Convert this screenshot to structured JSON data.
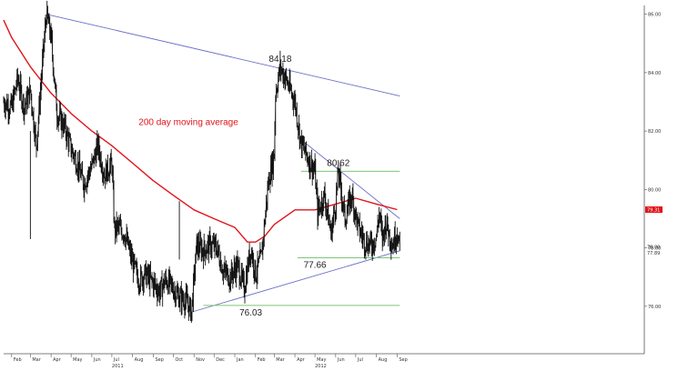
{
  "colors": {
    "price": "#111111",
    "moving_average": "#e0141a",
    "trendline": "#6b6fc7",
    "support": "#7cc57a",
    "marker_red": "#e0141a",
    "axis": "#555555"
  },
  "chart_data": {
    "type": "line",
    "title": "",
    "xlabel": "",
    "ylabel": "",
    "x_range": [
      "2010-01-20",
      "2012-09-05"
    ],
    "ylim": [
      74.5,
      86.3
    ],
    "x_ticks": [
      {
        "date": "2010-02-01",
        "label": "Feb"
      },
      {
        "date": "2010-03-01",
        "label": "Mar"
      },
      {
        "date": "2010-04-01",
        "label": "Apr"
      },
      {
        "date": "2010-05-01",
        "label": "May"
      },
      {
        "date": "2010-06-01",
        "label": "Jun"
      },
      {
        "date": "2010-07-01",
        "label": "Jul"
      },
      {
        "date": "2010-08-01",
        "label": "Aug"
      },
      {
        "date": "2010-09-01",
        "label": "Sep"
      },
      {
        "date": "2010-10-01",
        "label": "Oct"
      },
      {
        "date": "2010-11-01",
        "label": "Nov"
      },
      {
        "date": "2010-12-01",
        "label": "Dec"
      },
      {
        "date": "2011-01-01",
        "label": "Jan"
      },
      {
        "date": "2011-02-01",
        "label": "Feb"
      },
      {
        "date": "2011-03-01",
        "label": "Mar"
      },
      {
        "date": "2011-04-01",
        "label": "Apr"
      },
      {
        "date": "2011-05-01",
        "label": "May"
      },
      {
        "date": "2011-06-01",
        "label": "Jun"
      },
      {
        "date": "2011-07-01",
        "label": "Jul"
      },
      {
        "date": "2011-08-01",
        "label": "Aug"
      },
      {
        "date": "2011-09-01",
        "label": "Sep"
      }
    ],
    "year_labels": [
      {
        "date": "2010-07-01",
        "label": "2011"
      },
      {
        "date": "2011-05-01",
        "label": "2012"
      }
    ],
    "y_ticks": [
      86.0,
      84.0,
      82.0,
      80.0,
      78.0,
      76.0
    ],
    "y_tick_labels": [
      "86.00",
      "84.00",
      "82.00",
      "80.00",
      "78.00",
      "76.00"
    ],
    "end_markers": [
      {
        "value": 79.31,
        "label": "79.31",
        "series": "moving_average"
      },
      {
        "value": 78.0,
        "label": "78.00",
        "series": "price"
      },
      {
        "value": 77.89,
        "label": "77.89",
        "series": "price"
      }
    ],
    "series": [
      {
        "role": "price",
        "x": [
          "2010-01-20",
          "2010-02-01",
          "2010-02-10",
          "2010-02-20",
          "2010-03-01",
          "2010-03-10",
          "2010-03-20",
          "2010-03-25",
          "2010-04-01",
          "2010-04-10",
          "2010-04-20",
          "2010-05-01",
          "2010-05-10",
          "2010-05-20",
          "2010-06-01",
          "2010-06-10",
          "2010-06-20",
          "2010-07-01",
          "2010-07-05",
          "2010-07-10",
          "2010-07-20",
          "2010-08-01",
          "2010-08-10",
          "2010-08-20",
          "2010-09-01",
          "2010-09-10",
          "2010-09-20",
          "2010-10-01",
          "2010-10-10",
          "2010-10-20",
          "2010-10-28",
          "2010-11-05",
          "2010-11-15",
          "2010-11-25",
          "2010-12-05",
          "2010-12-15",
          "2010-12-25",
          "2011-01-05",
          "2011-01-15",
          "2011-01-25",
          "2011-02-01",
          "2011-02-10",
          "2011-02-20",
          "2011-03-01",
          "2011-03-03",
          "2011-03-10",
          "2011-03-20",
          "2011-04-01",
          "2011-04-10",
          "2011-04-20",
          "2011-05-01",
          "2011-05-05",
          "2011-05-15",
          "2011-05-25",
          "2011-06-01",
          "2011-06-05",
          "2011-06-15",
          "2011-06-25",
          "2011-07-05",
          "2011-07-15",
          "2011-07-25",
          "2011-08-01",
          "2011-08-05",
          "2011-08-10",
          "2011-08-15",
          "2011-08-25",
          "2011-09-01",
          "2011-09-05"
        ],
        "values": [
          83.0,
          82.8,
          83.8,
          82.8,
          83.4,
          81.5,
          84.6,
          86.0,
          85.2,
          82.6,
          82.2,
          81.4,
          80.9,
          80.2,
          80.8,
          81.5,
          80.5,
          80.9,
          78.6,
          78.7,
          78.5,
          77.5,
          76.9,
          77.1,
          76.8,
          76.5,
          76.9,
          76.6,
          76.3,
          76.2,
          75.8,
          78.1,
          77.9,
          78.1,
          78.0,
          77.2,
          77.0,
          77.4,
          76.6,
          78.0,
          77.1,
          77.7,
          80.2,
          81.2,
          83.3,
          84.18,
          83.7,
          83.0,
          81.6,
          81.1,
          80.6,
          79.2,
          79.8,
          78.5,
          79.5,
          80.62,
          79.0,
          79.8,
          78.7,
          78.2,
          78.1,
          78.4,
          79.2,
          78.3,
          78.9,
          78.1,
          78.6,
          77.89
        ]
      },
      {
        "role": "moving_average",
        "name": "200 day moving average",
        "x": [
          "2010-01-20",
          "2010-02-01",
          "2010-03-01",
          "2010-04-01",
          "2010-05-01",
          "2010-06-01",
          "2010-07-01",
          "2010-08-01",
          "2010-09-01",
          "2010-10-01",
          "2010-11-01",
          "2010-12-01",
          "2011-01-01",
          "2011-01-20",
          "2011-02-01",
          "2011-02-15",
          "2011-03-01",
          "2011-04-01",
          "2011-05-01",
          "2011-06-01",
          "2011-07-01",
          "2011-08-01",
          "2011-09-01"
        ],
        "values": [
          85.8,
          85.2,
          84.2,
          83.3,
          82.6,
          82.0,
          81.5,
          80.9,
          80.3,
          79.8,
          79.3,
          79.0,
          78.7,
          78.2,
          78.2,
          78.4,
          78.8,
          79.3,
          79.3,
          79.5,
          79.7,
          79.5,
          79.31
        ]
      }
    ],
    "trendlines": [
      {
        "kind": "resistance",
        "x": [
          "2010-03-25",
          "2011-09-05"
        ],
        "values": [
          86.0,
          83.2
        ]
      },
      {
        "kind": "resistance",
        "x": [
          "2011-04-05",
          "2011-09-05"
        ],
        "values": [
          81.8,
          79.0
        ]
      },
      {
        "kind": "support",
        "x": [
          "2010-10-28",
          "2011-09-05"
        ],
        "values": [
          75.8,
          77.9
        ]
      }
    ],
    "support_levels": [
      {
        "value": 80.62,
        "x": [
          "2011-04-10",
          "2011-09-05"
        ]
      },
      {
        "value": 77.66,
        "x": [
          "2011-04-05",
          "2011-09-05"
        ]
      },
      {
        "value": 76.03,
        "x": [
          "2010-11-15",
          "2011-09-05"
        ]
      }
    ],
    "annotations": [
      {
        "text": "84.18",
        "date": "2011-03-10",
        "value": 84.18
      },
      {
        "text": "80.62",
        "date": "2011-06-05",
        "value": 80.62
      },
      {
        "text": "77.66",
        "date": "2011-05-01",
        "value": 77.66
      },
      {
        "text": "76.03",
        "date": "2011-01-25",
        "value": 76.03
      },
      {
        "text": "200 day moving average",
        "date": "2010-08-10",
        "value": 82.2
      }
    ],
    "grid": false,
    "legend": "none"
  }
}
